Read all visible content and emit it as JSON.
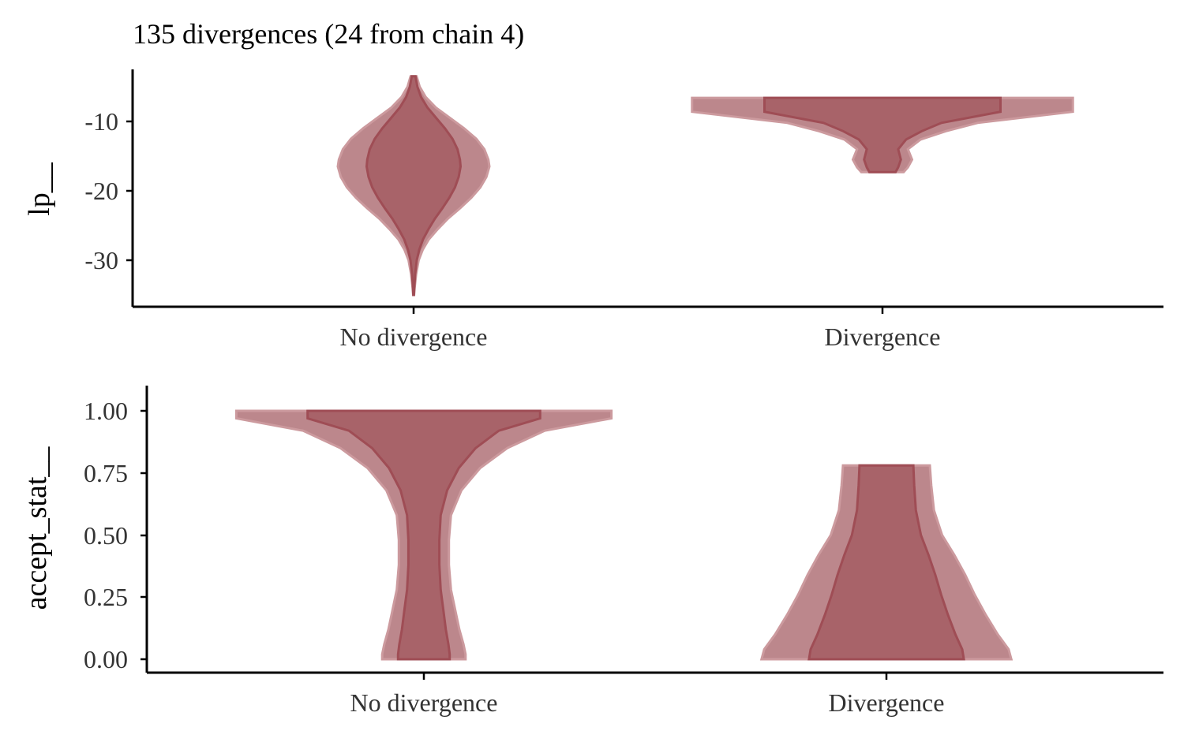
{
  "title": "135 divergences (24 from chain 4)",
  "colors": {
    "fill_outer": "#b57a7f",
    "fill_inner": "#a45d63",
    "outline": "#9f4d55",
    "fill_alt": "#cc9a9e"
  },
  "chart_data": [
    {
      "type": "violin",
      "ylabel": "lp__",
      "categories": [
        "No divergence",
        "Divergence"
      ],
      "yticks": [
        -10,
        -20,
        -30
      ],
      "ylim": [
        -37,
        -2
      ],
      "series": [
        {
          "values": [
            [
              -3.5,
              0.03
            ],
            [
              -5,
              0.06
            ],
            [
              -6.5,
              0.12
            ],
            [
              -8,
              0.22
            ],
            [
              -9.5,
              0.36
            ],
            [
              -11,
              0.5
            ],
            [
              -12.5,
              0.62
            ],
            [
              -14,
              0.7
            ],
            [
              -15.5,
              0.74
            ],
            [
              -16.5,
              0.75
            ],
            [
              -18,
              0.72
            ],
            [
              -19.5,
              0.66
            ],
            [
              -21,
              0.57
            ],
            [
              -22.5,
              0.46
            ],
            [
              -24,
              0.34
            ],
            [
              -25.5,
              0.24
            ],
            [
              -27,
              0.15
            ],
            [
              -28.5,
              0.09
            ],
            [
              -30,
              0.05
            ],
            [
              -32,
              0.025
            ],
            [
              -34,
              0.01
            ],
            [
              -35,
              0.005
            ]
          ]
        },
        {
          "values": [
            [
              -6.6,
              0.9
            ],
            [
              -8.6,
              0.9
            ],
            [
              -10.2,
              0.45
            ],
            [
              -11.4,
              0.3
            ],
            [
              -12.6,
              0.18
            ],
            [
              -14,
              0.12
            ],
            [
              -15.5,
              0.14
            ],
            [
              -16.6,
              0.12
            ],
            [
              -17.3,
              0.1
            ]
          ]
        }
      ]
    },
    {
      "type": "violin",
      "ylabel": "accept_stat__",
      "categories": [
        "No divergence",
        "Divergence"
      ],
      "yticks": [
        1.0,
        0.75,
        0.5,
        0.25,
        0.0
      ],
      "ylim": [
        -0.05,
        1.1
      ],
      "series": [
        {
          "values": [
            [
              1.0,
              0.9
            ],
            [
              0.97,
              0.9
            ],
            [
              0.92,
              0.58
            ],
            [
              0.85,
              0.4
            ],
            [
              0.77,
              0.27
            ],
            [
              0.68,
              0.18
            ],
            [
              0.58,
              0.13
            ],
            [
              0.48,
              0.12
            ],
            [
              0.38,
              0.12
            ],
            [
              0.28,
              0.13
            ],
            [
              0.2,
              0.15
            ],
            [
              0.12,
              0.17
            ],
            [
              0.06,
              0.19
            ],
            [
              0.02,
              0.2
            ],
            [
              0.0,
              0.2
            ]
          ]
        },
        {
          "values": [
            [
              0.78,
              0.32
            ],
            [
              0.7,
              0.33
            ],
            [
              0.6,
              0.35
            ],
            [
              0.5,
              0.41
            ],
            [
              0.42,
              0.5
            ],
            [
              0.34,
              0.58
            ],
            [
              0.26,
              0.65
            ],
            [
              0.18,
              0.73
            ],
            [
              0.1,
              0.82
            ],
            [
              0.04,
              0.9
            ],
            [
              0.0,
              0.92
            ]
          ]
        }
      ]
    }
  ],
  "tick_labels": {
    "top_y": [
      "-10",
      "-20",
      "-30"
    ],
    "bottom_y": [
      "1.00",
      "0.75",
      "0.50",
      "0.25",
      "0.00"
    ]
  }
}
